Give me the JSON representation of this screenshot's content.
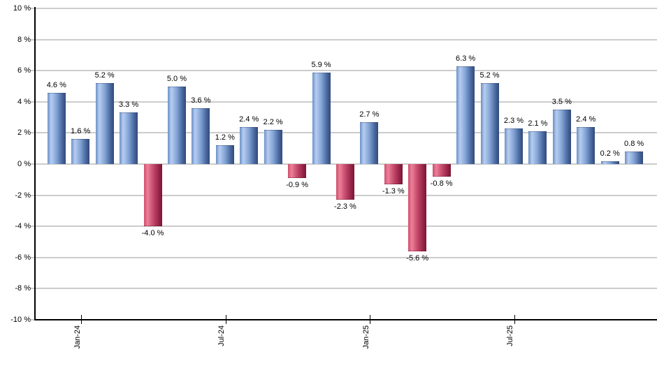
{
  "chart_data": {
    "type": "bar",
    "title": "",
    "xlabel": "",
    "ylabel": "",
    "values": [
      4.6,
      1.6,
      5.2,
      3.3,
      -4.0,
      5.0,
      3.6,
      1.2,
      2.4,
      2.2,
      -0.9,
      5.9,
      -2.3,
      2.7,
      -1.3,
      -5.6,
      -0.8,
      6.3,
      5.2,
      2.3,
      2.1,
      3.5,
      2.4,
      0.2,
      0.8
    ],
    "bar_labels": [
      "4.6 %",
      "1.6 %",
      "5.2 %",
      "3.3 %",
      "-4.0 %",
      "5.0 %",
      "3.6 %",
      "1.2 %",
      "2.4 %",
      "2.2 %",
      "-0.9 %",
      "5.9 %",
      "-2.3 %",
      "2.7 %",
      "-1.3 %",
      "-5.6 %",
      "-0.8 %",
      "6.3 %",
      "5.2 %",
      "2.3 %",
      "2.1 %",
      "3.5 %",
      "2.4 %",
      "0.2 %",
      "0.8 %"
    ],
    "x_ticks": [
      {
        "label": "Jan-24",
        "bar_index": 1
      },
      {
        "label": "Jul-24",
        "bar_index": 7
      },
      {
        "label": "Jan-25",
        "bar_index": 13
      },
      {
        "label": "Jul-25",
        "bar_index": 19
      }
    ],
    "y_ticks": [
      {
        "label": "10 %",
        "value": 10
      },
      {
        "label": "8 %",
        "value": 8
      },
      {
        "label": "6 %",
        "value": 6
      },
      {
        "label": "4 %",
        "value": 4
      },
      {
        "label": "2 %",
        "value": 2
      },
      {
        "label": "0 %",
        "value": 0
      },
      {
        "label": "-2 %",
        "value": -2
      },
      {
        "label": "-4 %",
        "value": -4
      },
      {
        "label": "-6 %",
        "value": -6
      },
      {
        "label": "-8 %",
        "value": -8
      },
      {
        "label": "-10 %",
        "value": -10
      }
    ],
    "y_axis": {
      "min": -10,
      "max": 10,
      "step": 2
    },
    "grid": "horizontal",
    "legend": "none",
    "colors": {
      "positive_gradient_stops": [
        "#6b90c6",
        "#b7cdf1",
        "#82a3d4",
        "#4a699f",
        "#30497b"
      ],
      "negative_gradient_stops": [
        "#cd4f6e",
        "#ec8099",
        "#c64a6c",
        "#98264a",
        "#7d1434"
      ],
      "gridline": "#cccccc",
      "axis": "#000000",
      "text": "#000000",
      "background": "#ffffff"
    }
  }
}
